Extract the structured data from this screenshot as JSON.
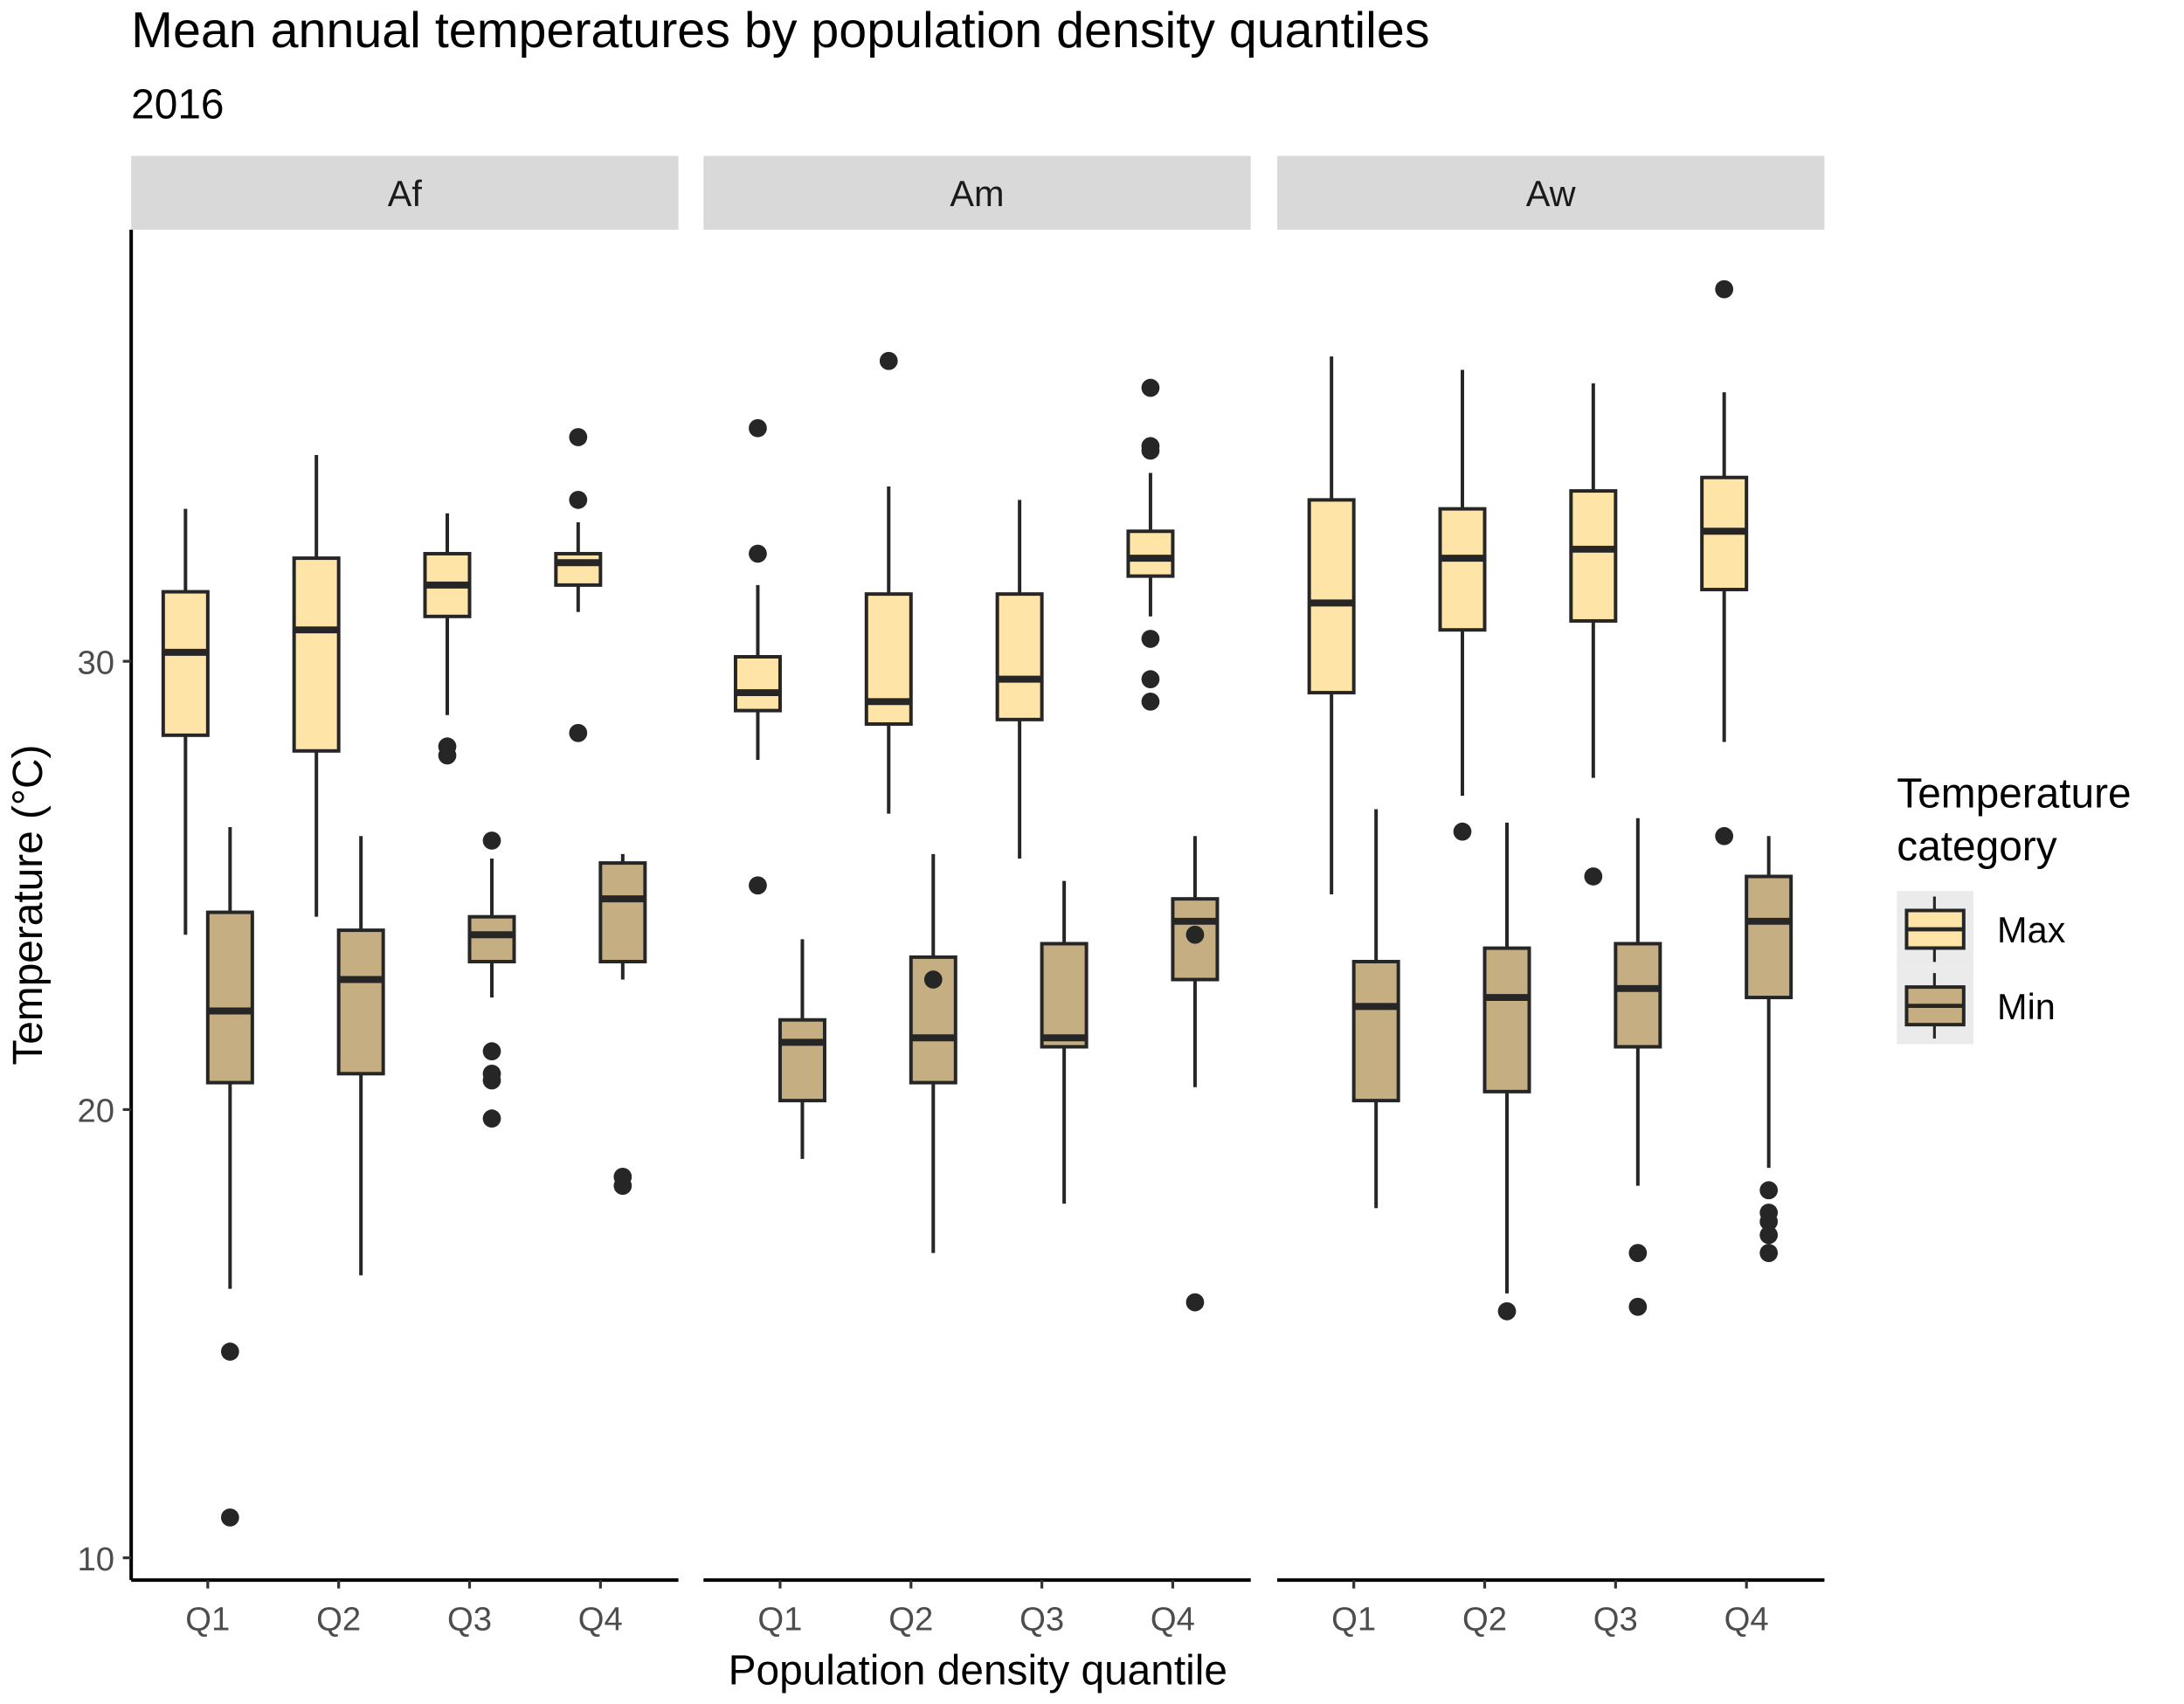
{
  "chart_data": {
    "type": "boxplot",
    "title": "Mean annual temperatures by population density quantiles",
    "subtitle": "2016",
    "xlabel": "Population density quantile",
    "ylabel": "Temperature (°C)",
    "ylim": [
      9.5,
      40
    ],
    "yticks": [
      10,
      20,
      30
    ],
    "grid": false,
    "categories": [
      "Q1",
      "Q2",
      "Q3",
      "Q4"
    ],
    "legend": {
      "title_line1": "Temperature",
      "title_line2": "category",
      "position": "right",
      "entries": [
        "Max",
        "Min"
      ]
    },
    "colors": {
      "Max": "#FFE4A8",
      "Min": "#C4AE82",
      "outline": "#262626",
      "strip": "#D9D9D9"
    },
    "panels": [
      {
        "name": "Af",
        "boxes": [
          {
            "q": "Q1",
            "series": "Max",
            "stats": [
              23.9,
              28.35,
              30.2,
              31.55,
              33.4
            ],
            "outliers": []
          },
          {
            "q": "Q1",
            "series": "Min",
            "stats": [
              16.0,
              20.6,
              22.2,
              24.4,
              26.3
            ],
            "outliers": [
              14.6,
              10.9
            ]
          },
          {
            "q": "Q2",
            "series": "Max",
            "stats": [
              24.3,
              28.0,
              30.7,
              32.3,
              34.6
            ],
            "outliers": []
          },
          {
            "q": "Q2",
            "series": "Min",
            "stats": [
              16.3,
              20.8,
              22.9,
              24.0,
              26.1
            ],
            "outliers": []
          },
          {
            "q": "Q3",
            "series": "Max",
            "stats": [
              28.8,
              31.0,
              31.7,
              32.4,
              33.3
            ],
            "outliers": [
              28.1,
              27.9
            ]
          },
          {
            "q": "Q3",
            "series": "Min",
            "stats": [
              22.5,
              23.3,
              23.9,
              24.3,
              25.6
            ],
            "outliers": [
              26.0,
              21.3,
              20.8,
              20.65,
              19.8
            ]
          },
          {
            "q": "Q4",
            "series": "Max",
            "stats": [
              31.1,
              31.7,
              32.2,
              32.4,
              33.1
            ],
            "outliers": [
              35.0,
              33.6,
              28.4
            ]
          },
          {
            "q": "Q4",
            "series": "Min",
            "stats": [
              22.9,
              23.3,
              24.7,
              25.5,
              25.7
            ],
            "outliers": [
              18.5,
              18.3
            ]
          }
        ]
      },
      {
        "name": "Am",
        "boxes": [
          {
            "q": "Q1",
            "series": "Max",
            "stats": [
              27.8,
              28.9,
              29.3,
              30.1,
              31.7
            ],
            "outliers": [
              35.2,
              32.4,
              25.0
            ]
          },
          {
            "q": "Q1",
            "series": "Min",
            "stats": [
              18.9,
              20.2,
              21.5,
              22.0,
              23.8
            ],
            "outliers": []
          },
          {
            "q": "Q2",
            "series": "Max",
            "stats": [
              26.6,
              28.6,
              29.1,
              31.5,
              33.9
            ],
            "outliers": [
              36.7
            ]
          },
          {
            "q": "Q2",
            "series": "Min",
            "stats": [
              16.8,
              20.6,
              21.6,
              23.4,
              25.7
            ],
            "outliers": [
              22.9
            ]
          },
          {
            "q": "Q3",
            "series": "Max",
            "stats": [
              25.6,
              28.7,
              29.6,
              31.5,
              33.6
            ],
            "outliers": []
          },
          {
            "q": "Q3",
            "series": "Min",
            "stats": [
              17.9,
              21.4,
              21.6,
              23.7,
              25.1
            ],
            "outliers": []
          },
          {
            "q": "Q4",
            "series": "Max",
            "stats": [
              31.0,
              31.9,
              32.3,
              32.9,
              34.2
            ],
            "outliers": [
              36.1,
              34.8,
              34.7,
              30.5,
              29.6,
              29.1
            ]
          },
          {
            "q": "Q4",
            "series": "Min",
            "stats": [
              20.5,
              22.9,
              24.2,
              24.7,
              26.1
            ],
            "outliers": [
              23.9,
              15.7
            ]
          }
        ]
      },
      {
        "name": "Aw",
        "boxes": [
          {
            "q": "Q1",
            "series": "Max",
            "stats": [
              24.8,
              29.3,
              31.3,
              33.6,
              36.8
            ],
            "outliers": []
          },
          {
            "q": "Q1",
            "series": "Min",
            "stats": [
              17.8,
              20.2,
              22.3,
              23.3,
              26.7
            ],
            "outliers": []
          },
          {
            "q": "Q2",
            "series": "Max",
            "stats": [
              27.0,
              30.7,
              32.3,
              33.4,
              36.5
            ],
            "outliers": [
              26.2
            ]
          },
          {
            "q": "Q2",
            "series": "Min",
            "stats": [
              15.9,
              20.4,
              22.5,
              23.6,
              26.4
            ],
            "outliers": [
              15.5
            ]
          },
          {
            "q": "Q3",
            "series": "Max",
            "stats": [
              27.4,
              30.9,
              32.5,
              33.8,
              36.2
            ],
            "outliers": [
              25.2
            ]
          },
          {
            "q": "Q3",
            "series": "Min",
            "stats": [
              18.3,
              21.4,
              22.7,
              23.7,
              26.5
            ],
            "outliers": [
              16.8,
              15.6
            ]
          },
          {
            "q": "Q4",
            "series": "Max",
            "stats": [
              28.2,
              31.6,
              32.9,
              34.1,
              36.0
            ],
            "outliers": [
              38.3,
              26.1
            ]
          },
          {
            "q": "Q4",
            "series": "Min",
            "stats": [
              18.7,
              22.5,
              24.2,
              25.2,
              26.1
            ],
            "outliers": [
              18.2,
              17.7,
              17.5,
              17.2,
              16.8
            ]
          }
        ]
      }
    ]
  }
}
